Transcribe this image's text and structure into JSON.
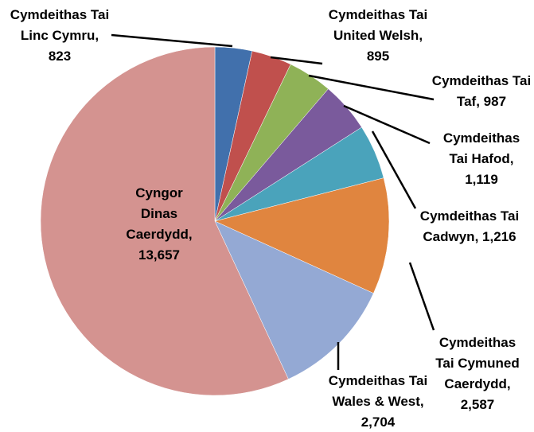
{
  "chart_data": {
    "type": "pie",
    "categories": [
      "Cymdeithas Tai Linc Cymru",
      "Cymdeithas Tai United Welsh",
      "Cymdeithas Tai Taf",
      "Cymdeithas Tai Hafod",
      "Cymdeithas Tai Cadwyn",
      "Cymdeithas Tai Cymuned Caerdydd",
      "Cymdeithas Tai Wales & West",
      "Cyngor Dinas Caerdydd"
    ],
    "values": [
      823,
      895,
      987,
      1119,
      1216,
      2587,
      2704,
      13657
    ],
    "value_labels": [
      "823",
      "895",
      "987",
      "1,119",
      "1,216",
      "2,587",
      "2,704",
      "13,657"
    ],
    "colors": [
      "#4170ac",
      "#c0504d",
      "#8fb257",
      "#7a5a9c",
      "#4aa3bb",
      "#e0853f",
      "#94a9d4",
      "#d49390"
    ]
  }
}
